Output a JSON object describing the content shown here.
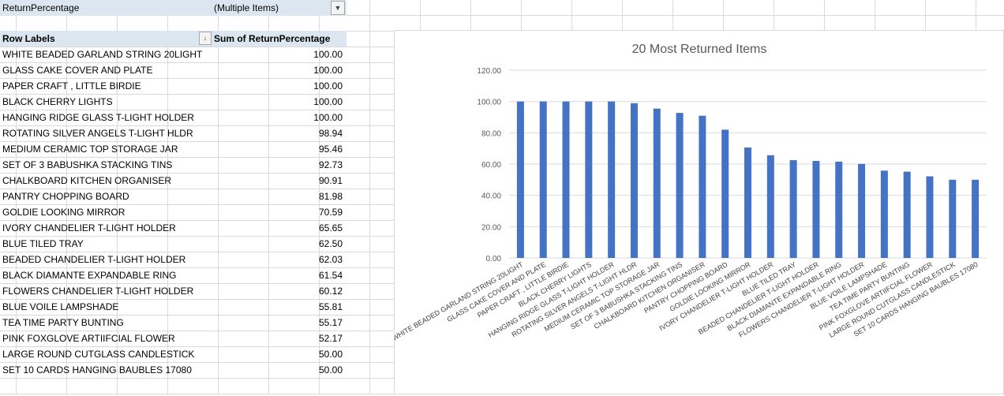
{
  "filter": {
    "field": "ReturnPercentage",
    "value": "(Multiple Items)"
  },
  "pivot": {
    "row_header": "Row Labels",
    "value_header": "Sum of ReturnPercentage",
    "rows": [
      {
        "label": "WHITE BEADED GARLAND STRING 20LIGHT",
        "value": "100.00"
      },
      {
        "label": "GLASS CAKE COVER AND PLATE",
        "value": "100.00"
      },
      {
        "label": "PAPER CRAFT , LITTLE BIRDIE",
        "value": "100.00"
      },
      {
        "label": "BLACK CHERRY LIGHTS",
        "value": "100.00"
      },
      {
        "label": "HANGING RIDGE GLASS T-LIGHT HOLDER",
        "value": "100.00"
      },
      {
        "label": "ROTATING SILVER ANGELS T-LIGHT HLDR",
        "value": "98.94"
      },
      {
        "label": "MEDIUM CERAMIC TOP STORAGE JAR",
        "value": "95.46"
      },
      {
        "label": "SET OF 3 BABUSHKA STACKING TINS",
        "value": "92.73"
      },
      {
        "label": "CHALKBOARD KITCHEN ORGANISER",
        "value": "90.91"
      },
      {
        "label": "PANTRY CHOPPING BOARD",
        "value": "81.98"
      },
      {
        "label": "GOLDIE LOOKING MIRROR",
        "value": "70.59"
      },
      {
        "label": "IVORY CHANDELIER T-LIGHT HOLDER",
        "value": "65.65"
      },
      {
        "label": "BLUE TILED TRAY",
        "value": "62.50"
      },
      {
        "label": "BEADED CHANDELIER T-LIGHT HOLDER",
        "value": "62.03"
      },
      {
        "label": "BLACK DIAMANTE EXPANDABLE RING",
        "value": "61.54"
      },
      {
        "label": "FLOWERS CHANDELIER T-LIGHT HOLDER",
        "value": "60.12"
      },
      {
        "label": "BLUE  VOILE LAMPSHADE",
        "value": "55.81"
      },
      {
        "label": "TEA TIME PARTY BUNTING",
        "value": "55.17"
      },
      {
        "label": "PINK FOXGLOVE ARTIIFCIAL FLOWER",
        "value": "52.17"
      },
      {
        "label": "LARGE ROUND CUTGLASS CANDLESTICK",
        "value": "50.00"
      },
      {
        "label": "SET 10 CARDS HANGING BAUBLES 17080",
        "value": "50.00"
      }
    ]
  },
  "chart_data": {
    "type": "bar",
    "title": "20 Most Returned Items",
    "categories": [
      "WHITE BEADED GARLAND STRING 20LIGHT",
      "GLASS CAKE COVER AND PLATE",
      "PAPER CRAFT , LITTLE BIRDIE",
      "BLACK CHERRY LIGHTS",
      "HANGING RIDGE GLASS T-LIGHT HOLDER",
      "ROTATING SILVER ANGELS T-LIGHT HLDR",
      "MEDIUM CERAMIC TOP STORAGE JAR",
      "SET OF 3 BABUSHKA STACKING TINS",
      "CHALKBOARD KITCHEN ORGANISER",
      "PANTRY CHOPPING BOARD",
      "GOLDIE LOOKING MIRROR",
      "IVORY CHANDELIER T-LIGHT HOLDER",
      "BLUE TILED TRAY",
      "BEADED CHANDELIER T-LIGHT HOLDER",
      "BLACK DIAMANTE EXPANDABLE RING",
      "FLOWERS CHANDELIER T-LIGHT HOLDER",
      "BLUE  VOILE LAMPSHADE",
      "TEA TIME PARTY BUNTING",
      "PINK FOXGLOVE ARTIIFCIAL FLOWER",
      "LARGE ROUND CUTGLASS CANDLESTICK",
      "SET 10 CARDS HANGING BAUBLES 17080"
    ],
    "values": [
      100,
      100,
      100,
      100,
      100,
      98.94,
      95.46,
      92.73,
      90.91,
      81.98,
      70.59,
      65.65,
      62.5,
      62.03,
      61.54,
      60.12,
      55.81,
      55.17,
      52.17,
      50,
      50
    ],
    "yticks": [
      "0.00",
      "20.00",
      "40.00",
      "60.00",
      "80.00",
      "100.00",
      "120.00"
    ],
    "ylim": [
      0,
      120
    ],
    "grid": true,
    "legend": "none",
    "bar_color": "#4472c4"
  }
}
